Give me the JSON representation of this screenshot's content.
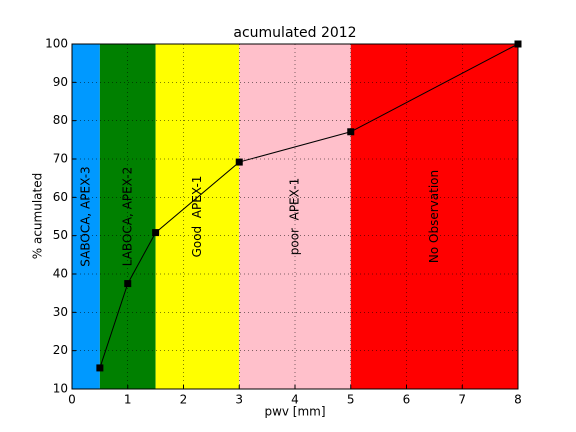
{
  "chart_data": {
    "type": "line",
    "title": "acumulated 2012",
    "x_label": "pwv [mm]",
    "y_label": "% acumulated",
    "x": [
      0.5,
      1,
      1.5,
      3,
      5,
      8
    ],
    "series": [
      {
        "color": "#000000",
        "values": [
          15.5,
          37.5,
          50.8,
          69.2,
          77.1,
          100
        ]
      }
    ],
    "bands": [
      {
        "from": 0,
        "to": 0.5,
        "color": "#0099ff",
        "label": "SABOCA, APEX-3"
      },
      {
        "from": 0.5,
        "to": 1.5,
        "color": "#008000",
        "label": "LABOCA, APEX-2"
      },
      {
        "from": 1.5,
        "to": 3,
        "color": "#ffff00",
        "label": "Good  APEX-1"
      },
      {
        "from": 3,
        "to": 5,
        "color": "#ffc0cb",
        "label": "poor  APEX-1"
      },
      {
        "from": 5,
        "to": 8,
        "color": "#ff0000",
        "label": "No Observation"
      }
    ],
    "xlim": [
      0,
      8
    ],
    "xticks": [
      0,
      1,
      2,
      3,
      4,
      5,
      6,
      7,
      8
    ],
    "ylim": [
      10,
      100
    ],
    "yticks": [
      10,
      20,
      30,
      40,
      50,
      60,
      70,
      80,
      90,
      100
    ],
    "grid": true
  }
}
